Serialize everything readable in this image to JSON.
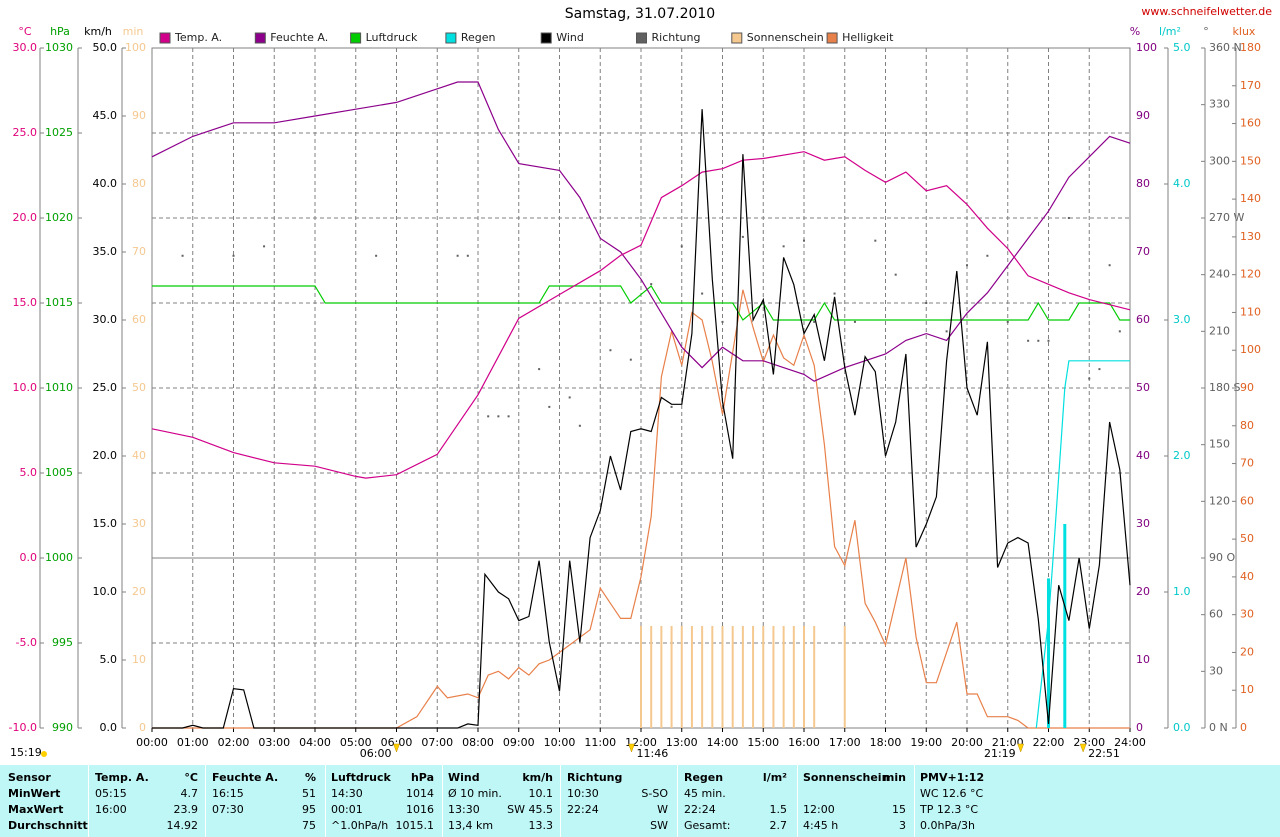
{
  "chart_data": {
    "type": "line",
    "title": "Samstag, 31.07.2010",
    "source": "www.schneifelwetter.de",
    "moon_label": "15:19",
    "xlim": [
      0,
      24
    ],
    "xticks": [
      {
        "value": 0,
        "label": "00:00"
      },
      {
        "value": 1,
        "label": "01:00"
      },
      {
        "value": 2,
        "label": "02:00"
      },
      {
        "value": 3,
        "label": "03:00"
      },
      {
        "value": 4,
        "label": "04:00"
      },
      {
        "value": 5,
        "label": "05:00"
      },
      {
        "value": 6,
        "label": "06:00"
      },
      {
        "value": 7,
        "label": "07:00"
      },
      {
        "value": 8,
        "label": "08:00"
      },
      {
        "value": 9,
        "label": "09:00"
      },
      {
        "value": 10,
        "label": "10:00"
      },
      {
        "value": 11,
        "label": "11:00"
      },
      {
        "value": 12,
        "label": "12:00"
      },
      {
        "value": 13,
        "label": "13:00"
      },
      {
        "value": 14,
        "label": "14:00"
      },
      {
        "value": 15,
        "label": "15:00"
      },
      {
        "value": 16,
        "label": "16:00"
      },
      {
        "value": 17,
        "label": "17:00"
      },
      {
        "value": 18,
        "label": "18:00"
      },
      {
        "value": 19,
        "label": "19:00"
      },
      {
        "value": 20,
        "label": "20:00"
      },
      {
        "value": 21,
        "label": "21:00"
      },
      {
        "value": 22,
        "label": "22:00"
      },
      {
        "value": 23,
        "label": "23:00"
      },
      {
        "value": 24,
        "label": "24:00"
      }
    ],
    "grid": true,
    "annotations": [
      {
        "text": "06:00",
        "x": 6
      },
      {
        "text": "11:46",
        "x": 11.767
      },
      {
        "text": "21:19",
        "x": 21.317
      },
      {
        "text": "22:51",
        "x": 22.85
      }
    ],
    "y_axes": [
      {
        "label": "°C",
        "color": "#e0007a",
        "lim": [
          -10,
          30
        ],
        "ticks": [
          {
            "value": -10,
            "label": "-10.0"
          },
          {
            "value": -5,
            "label": "-5.0"
          },
          {
            "value": 0,
            "label": "0.0"
          },
          {
            "value": 5,
            "label": "5.0"
          },
          {
            "value": 10,
            "label": "10.0"
          },
          {
            "value": 15,
            "label": "15.0"
          },
          {
            "value": 20,
            "label": "20.0"
          },
          {
            "value": 25,
            "label": "25.0"
          },
          {
            "value": 30,
            "label": "30.0"
          }
        ]
      },
      {
        "label": "hPa",
        "color": "#00a000",
        "lim": [
          990,
          1030
        ],
        "ticks": [
          990,
          995,
          1000,
          1005,
          1010,
          1015,
          1020,
          1025,
          1030
        ]
      },
      {
        "label": "km/h",
        "color": "#000000",
        "lim": [
          0,
          50
        ],
        "ticks": [
          {
            "value": 0,
            "label": "0.0"
          },
          {
            "value": 5,
            "label": "5.0"
          },
          {
            "value": 10,
            "label": "10.0"
          },
          {
            "value": 15,
            "label": "15.0"
          },
          {
            "value": 20,
            "label": "20.0"
          },
          {
            "value": 25,
            "label": "25.0"
          },
          {
            "value": 30,
            "label": "30.0"
          },
          {
            "value": 35,
            "label": "35.0"
          },
          {
            "value": 40,
            "label": "40.0"
          },
          {
            "value": 45,
            "label": "45.0"
          },
          {
            "value": 50,
            "label": "50.0"
          }
        ]
      },
      {
        "label": "min",
        "color": "#f5c890",
        "lim": [
          0,
          100
        ],
        "ticks": [
          0,
          10,
          20,
          30,
          40,
          50,
          60,
          70,
          80,
          90,
          100
        ]
      },
      {
        "label": "%",
        "color": "#800080",
        "lim": [
          0,
          100
        ],
        "ticks": [
          0,
          10,
          20,
          30,
          40,
          50,
          60,
          70,
          80,
          90,
          100
        ]
      },
      {
        "label": "l/m²",
        "color": "#00c8c8",
        "lim": [
          0,
          5
        ],
        "ticks": [
          {
            "value": 0,
            "label": "0.0"
          },
          {
            "value": 1,
            "label": "1.0"
          },
          {
            "value": 2,
            "label": "2.0"
          },
          {
            "value": 3,
            "label": "3.0"
          },
          {
            "value": 4,
            "label": "4.0"
          },
          {
            "value": 5,
            "label": "5.0"
          }
        ]
      },
      {
        "label": "°",
        "color": "#606060",
        "lim": [
          0,
          360
        ],
        "ticks": [
          {
            "value": 0,
            "label": "0 N"
          },
          30,
          60,
          {
            "value": 90,
            "label": "90 O"
          },
          120,
          150,
          {
            "value": 180,
            "label": "180 S"
          },
          210,
          240,
          {
            "value": 270,
            "label": "270 W"
          },
          300,
          330,
          {
            "value": 360,
            "label": "360 N"
          }
        ]
      },
      {
        "label": "klux",
        "color": "#e06020",
        "lim": [
          0,
          180
        ],
        "ticks": [
          0,
          10,
          20,
          30,
          40,
          50,
          60,
          70,
          80,
          90,
          100,
          110,
          120,
          130,
          140,
          150,
          160,
          170,
          180
        ]
      }
    ],
    "series": [
      {
        "name": "Temp. A.",
        "color": "#d0008a",
        "axis": 0,
        "style": "line",
        "x": [
          0,
          1,
          2,
          3,
          4,
          5,
          5.25,
          6,
          7,
          8,
          9,
          10,
          11,
          11.5,
          12,
          12.5,
          13,
          13.5,
          14,
          14.5,
          15,
          16,
          16.5,
          17,
          17.5,
          18,
          18.5,
          19,
          19.5,
          20,
          20.5,
          21,
          21.5,
          22,
          22.5,
          23,
          24
        ],
        "values": [
          7.6,
          7.1,
          6.2,
          5.6,
          5.4,
          4.8,
          4.7,
          4.9,
          6.1,
          9.6,
          14.1,
          15.5,
          16.9,
          17.8,
          18.4,
          21.2,
          21.9,
          22.7,
          22.9,
          23.4,
          23.5,
          23.9,
          23.4,
          23.6,
          22.8,
          22.1,
          22.7,
          21.6,
          21.9,
          20.8,
          19.4,
          18.2,
          16.6,
          16.1,
          15.6,
          15.2,
          14.6
        ]
      },
      {
        "name": "Feuchte A.",
        "color": "#8c008c",
        "axis": 4,
        "style": "line",
        "x": [
          0,
          1,
          2,
          3,
          4,
          5,
          6,
          7,
          7.5,
          8,
          8.5,
          9,
          10,
          10.5,
          11,
          11.5,
          12,
          12.5,
          13,
          13.5,
          14,
          14.5,
          15,
          16,
          16.25,
          17,
          18,
          18.5,
          19,
          19.5,
          20,
          20.5,
          21,
          21.5,
          22,
          22.5,
          23,
          23.5,
          24
        ],
        "values": [
          84,
          87,
          89,
          89,
          90,
          91,
          92,
          94,
          95,
          95,
          88,
          83,
          82,
          78,
          72,
          70,
          66,
          61,
          56,
          53,
          56,
          54,
          54,
          52,
          51,
          53,
          55,
          57,
          58,
          57,
          61,
          64,
          68,
          72,
          76,
          81,
          84,
          87,
          86
        ]
      },
      {
        "name": "Luftdruck",
        "color": "#00cc00",
        "axis": 1,
        "style": "line",
        "x": [
          0,
          4,
          4.25,
          9.5,
          9.75,
          11.5,
          11.75,
          12.25,
          12.5,
          14.25,
          14.5,
          15,
          15.25,
          16.25,
          16.5,
          16.75,
          21.5,
          21.75,
          22,
          22.5,
          22.75,
          23.5,
          23.75,
          24
        ],
        "values": [
          1016,
          1016,
          1015,
          1015,
          1016,
          1016,
          1015,
          1016,
          1015,
          1015,
          1014,
          1015,
          1014,
          1014,
          1015,
          1014,
          1014,
          1015,
          1014,
          1014,
          1015,
          1015,
          1014,
          1014
        ]
      },
      {
        "name": "Regen",
        "color": "#00e0e0",
        "axis": 5,
        "style": "line",
        "x": [
          21.7,
          22.0,
          22.1,
          22.4,
          22.5,
          24
        ],
        "values": [
          0,
          0.8,
          1.2,
          2.5,
          2.7,
          2.7
        ],
        "bars": {
          "x": [
            22.0,
            22.4
          ],
          "values": [
            1.1,
            1.5
          ]
        }
      },
      {
        "name": "Wind",
        "color": "#000000",
        "axis": 2,
        "style": "line",
        "x": [
          0,
          0.75,
          1,
          1.25,
          1.75,
          2,
          2.25,
          2.5,
          7.5,
          7.75,
          8,
          8.17,
          8.5,
          8.75,
          9,
          9.25,
          9.5,
          9.75,
          10,
          10.25,
          10.5,
          10.75,
          11,
          11.25,
          11.5,
          11.75,
          12,
          12.25,
          12.5,
          12.75,
          13,
          13.25,
          13.5,
          13.75,
          14,
          14.25,
          14.5,
          14.75,
          15,
          15.25,
          15.5,
          15.75,
          16,
          16.25,
          16.5,
          16.75,
          17,
          17.25,
          17.5,
          17.75,
          18,
          18.25,
          18.5,
          18.75,
          19,
          19.25,
          19.5,
          19.75,
          20,
          20.25,
          20.5,
          20.75,
          21,
          21.25,
          21.5,
          21.75,
          22,
          22.25,
          22.5,
          22.75,
          23,
          23.25,
          23.5,
          23.75,
          24
        ],
        "values": [
          0,
          0,
          0.2,
          0,
          0,
          2.9,
          2.8,
          0,
          0,
          0.3,
          0.2,
          11.3,
          10,
          9.5,
          7.9,
          8.2,
          12.3,
          6.3,
          2.7,
          12.3,
          6.3,
          14,
          16,
          20,
          17.5,
          21.8,
          22,
          21.8,
          24.3,
          23.8,
          23.8,
          29,
          45.5,
          33,
          24,
          19.8,
          42.2,
          30,
          31.5,
          26,
          34.6,
          32.6,
          29,
          30.4,
          27,
          31.7,
          26.5,
          23,
          27.3,
          26.2,
          20,
          22.5,
          27.5,
          13.3,
          15,
          17,
          27,
          33.6,
          25,
          23,
          28.4,
          11.8,
          13.6,
          14,
          13.6,
          8,
          0.3,
          10.5,
          7.9,
          12.5,
          7.3,
          12,
          22.5,
          19,
          10.5
        ]
      },
      {
        "name": "Richtung",
        "color": "#606060",
        "axis": 6,
        "style": "dots",
        "x": [
          0.75,
          2,
          2.75,
          5.5,
          7.5,
          7.75,
          8.25,
          8.5,
          8.75,
          9.5,
          9.75,
          10.25,
          10.5,
          11.25,
          11.75,
          12.25,
          12.75,
          13,
          13.5,
          14,
          14.5,
          15,
          15.5,
          16,
          16.25,
          16.75,
          17.25,
          17.75,
          18.25,
          19,
          19.5,
          20,
          20.5,
          21,
          21.5,
          21.75,
          22,
          22.5,
          23,
          23.25,
          23.5,
          23.75
        ],
        "values": [
          250,
          250,
          255,
          250,
          250,
          250,
          165,
          165,
          165,
          190,
          170,
          175,
          160,
          200,
          195,
          235,
          170,
          255,
          230,
          215,
          260,
          225,
          255,
          258,
          215,
          230,
          215,
          258,
          240,
          225,
          210,
          245,
          250,
          215,
          205,
          205,
          205,
          270,
          185,
          190,
          245,
          210
        ]
      },
      {
        "name": "Sonnenschein",
        "color": "#f5c890",
        "axis": 3,
        "style": "sticks",
        "x": [
          12,
          12.25,
          12.5,
          12.75,
          13,
          13.25,
          13.5,
          13.75,
          14,
          14.25,
          14.5,
          14.75,
          15,
          15.25,
          15.5,
          15.75,
          16,
          16.25,
          17
        ],
        "values": [
          15,
          15,
          15,
          15,
          15,
          15,
          15,
          15,
          15,
          15,
          15,
          15,
          15,
          15,
          15,
          15,
          15,
          15,
          15
        ]
      },
      {
        "name": "Helligkeit",
        "color": "#e8804a",
        "axis": 7,
        "style": "line",
        "x": [
          0,
          6,
          6.5,
          7,
          7.25,
          7.75,
          8,
          8.25,
          8.5,
          8.75,
          9,
          9.25,
          9.5,
          9.75,
          10,
          10.25,
          10.5,
          10.75,
          11,
          11.25,
          11.5,
          11.75,
          12,
          12.25,
          12.5,
          12.75,
          13,
          13.25,
          13.5,
          13.75,
          14,
          14.5,
          14.75,
          15,
          15.25,
          15.5,
          15.75,
          16,
          16.25,
          16.5,
          16.75,
          17,
          17.25,
          17.5,
          17.75,
          18,
          18.5,
          18.75,
          19,
          19.25,
          19.5,
          19.75,
          20,
          20.25,
          20.5,
          20.75,
          21,
          21.25,
          21.5,
          24
        ],
        "values": [
          0,
          0,
          3,
          11,
          8,
          9,
          8,
          14,
          15,
          13,
          16,
          14,
          17,
          18,
          20,
          22,
          24,
          26,
          37,
          33,
          29,
          29,
          40,
          56,
          93,
          105,
          96,
          110,
          108,
          97,
          83,
          116,
          106,
          97,
          104,
          98,
          96,
          104,
          96,
          75,
          48,
          43,
          55,
          33,
          28,
          22,
          45,
          24,
          12,
          12,
          20,
          28,
          9,
          9,
          3,
          3,
          3,
          2,
          0,
          0
        ]
      }
    ]
  },
  "table": {
    "header": [
      "Sensor",
      "Temp. A.",
      "°C",
      "Feuchte A.",
      "%",
      "Luftdruck",
      "hPa",
      "Wind",
      "km/h",
      "Richtung",
      null,
      "Regen",
      "l/m²",
      "Sonnenschein",
      "min",
      "PMV+1:12"
    ],
    "rows": [
      [
        "MinWert",
        "05:15",
        "4.7",
        "16:15",
        "51",
        "14:30",
        "1014",
        "Ø 10 min.",
        "10.1",
        "10:30",
        "S-SO",
        "45 min.",
        null,
        null,
        null,
        "WC 12.6 °C"
      ],
      [
        "MaxWert",
        "16:00",
        "23.9",
        "07:30",
        "95",
        "00:01",
        "1016",
        "13:30",
        "SW 45.5",
        "22:24",
        "W",
        "22:24",
        "1.5",
        "12:00",
        "15",
        "TP 12.3 °C"
      ],
      [
        "Durchschnitt",
        null,
        "14.92",
        null,
        "75",
        "^1.0hPa/h",
        "1015.1",
        "13,4 km",
        "13.3",
        null,
        "SW",
        "Gesamt:",
        "2.7",
        "4:45 h",
        "3",
        "0.0hPa/3h"
      ]
    ]
  }
}
